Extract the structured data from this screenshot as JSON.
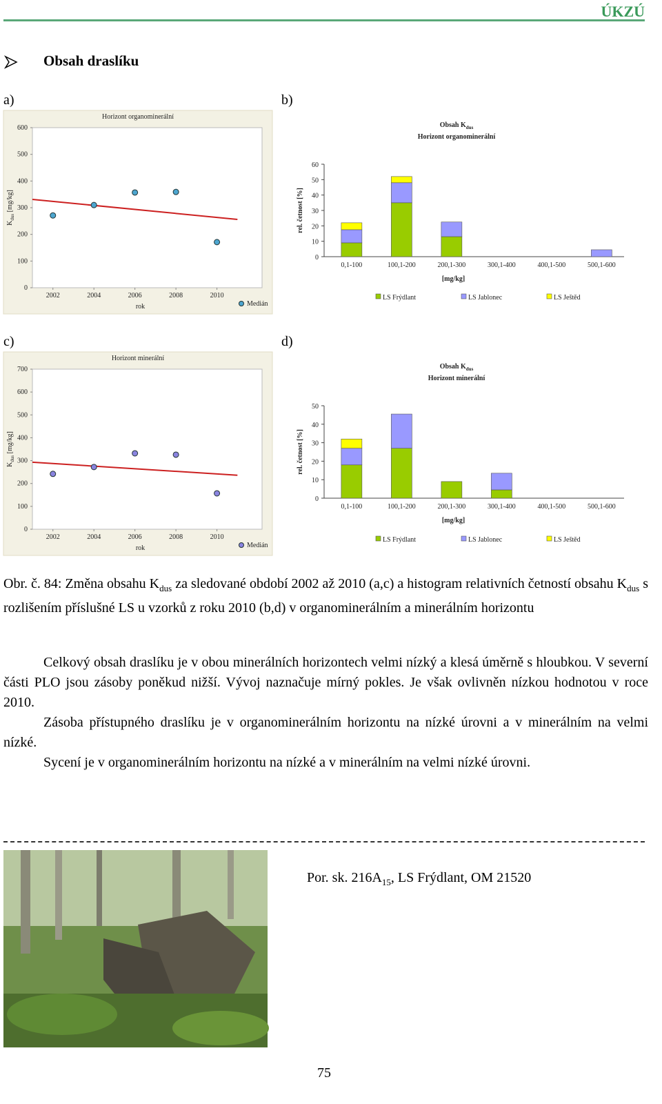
{
  "header": {
    "org": "ÚKZÚ"
  },
  "section_title": "Obsah draslíku",
  "panel_labels": [
    "a)",
    "b)",
    "c)",
    "d)"
  ],
  "chart_data": [
    {
      "type": "scatter",
      "title": "Horizont organominerální",
      "xlabel": "rok",
      "ylabel": [
        {
          "text": "K"
        },
        {
          "sub": "dus"
        },
        {
          "text": " [mg/kg]"
        }
      ],
      "x": [
        2002,
        2004,
        2006,
        2008,
        2010
      ],
      "series": [
        {
          "name": "Medián",
          "color": "#4da6d0",
          "values": [
            271,
            310,
            357,
            359,
            171
          ]
        }
      ],
      "trend": {
        "color": "#cc2020",
        "x": [
          2001,
          2011
        ],
        "values": [
          331,
          256
        ]
      },
      "xlim": [
        2001,
        2012.2
      ],
      "xticks": [
        2002,
        2004,
        2006,
        2008,
        2010
      ],
      "ylim": [
        0,
        600
      ],
      "yticks": [
        0,
        100,
        200,
        300,
        400,
        500,
        600
      ],
      "legend": "lower right"
    },
    {
      "type": "bar",
      "stacked": true,
      "title": [
        {
          "text": "Obsah K"
        },
        {
          "sub": "dus"
        }
      ],
      "subtitle": "Horizont organominerální",
      "xlabel": "[mg/kg]",
      "ylabel": "rel. četnost [%]",
      "categories": [
        "0,1-100",
        "100,1-200",
        "200,1-300",
        "300,1-400",
        "400,1-500",
        "500,1-600"
      ],
      "series": [
        {
          "name": "LS Frýdlant",
          "color": "#99cc00",
          "values": [
            9,
            35,
            13,
            0,
            0,
            0
          ]
        },
        {
          "name": "LS Jablonec",
          "color": "#9999ff",
          "values": [
            8.5,
            13,
            9.5,
            0,
            0,
            4.5
          ]
        },
        {
          "name": "LS Ještěd",
          "color": "#ffff00",
          "values": [
            4.5,
            4,
            0,
            0,
            0,
            0
          ]
        }
      ],
      "ylim": [
        0,
        60
      ],
      "yticks": [
        0,
        10,
        20,
        30,
        40,
        50,
        60
      ],
      "legend": "bottom"
    },
    {
      "type": "scatter",
      "title": "Horizont minerální",
      "xlabel": "rok",
      "ylabel": [
        {
          "text": "K"
        },
        {
          "sub": "dus"
        },
        {
          "text": " [mg/kg]"
        }
      ],
      "x": [
        2002,
        2004,
        2006,
        2008,
        2010
      ],
      "series": [
        {
          "name": "Medián",
          "color": "#8a84e0",
          "values": [
            242,
            272,
            332,
            326,
            157
          ]
        }
      ],
      "trend": {
        "color": "#cc2020",
        "x": [
          2001,
          2011
        ],
        "values": [
          293,
          236
        ]
      },
      "xlim": [
        2001,
        2012.2
      ],
      "xticks": [
        2002,
        2004,
        2006,
        2008,
        2010
      ],
      "ylim": [
        0,
        700
      ],
      "yticks": [
        0,
        100,
        200,
        300,
        400,
        500,
        600,
        700
      ],
      "legend": "lower right"
    },
    {
      "type": "bar",
      "stacked": true,
      "title": [
        {
          "text": "Obsah K"
        },
        {
          "sub": "dus"
        }
      ],
      "subtitle": "Horizont minerální",
      "xlabel": "[mg/kg]",
      "ylabel": "rel. četnost [%]",
      "categories": [
        "0,1-100",
        "100,1-200",
        "200,1-300",
        "300,1-400",
        "400,1-500",
        "500,1-600"
      ],
      "series": [
        {
          "name": "LS Frýdlant",
          "color": "#99cc00",
          "values": [
            18,
            27,
            9,
            4.5,
            0,
            0
          ]
        },
        {
          "name": "LS Jablonec",
          "color": "#9999ff",
          "values": [
            9,
            18.5,
            0,
            9,
            0,
            0
          ]
        },
        {
          "name": "LS Ještěd",
          "color": "#ffff00",
          "values": [
            5,
            0,
            0,
            0,
            0,
            0
          ]
        }
      ],
      "ylim": [
        0,
        50
      ],
      "yticks": [
        0,
        10,
        20,
        30,
        40,
        50
      ],
      "legend": "bottom"
    }
  ],
  "caption": [
    {
      "text": "Obr. č. 84: Změna obsahu K"
    },
    {
      "sub": "dus"
    },
    {
      "text": " za sledované období 2002 až 2010 (a,c) a histogram relativních četností obsahu K"
    },
    {
      "sub": "dus"
    },
    {
      "text": " s rozlišením příslušné LS u vzorků z roku 2010 (b,d) v organominerálním a minerálním horizontu"
    }
  ],
  "paragraphs": [
    "Celkový obsah draslíku je v obou minerálních horizontech velmi nízký a klesá úměrně s hloubkou. V severní části PLO jsou zásoby poněkud nižší. Vývoj naznačuje mírný pokles. Je však ovlivněn nízkou hodnotou v roce 2010.",
    "Zásoba přístupného draslíku je v organominerálním horizontu na nízké úrovni a v minerálním na velmi nízké.",
    "Sycení je v organominerálním horizontu na nízké a v minerálním na velmi nízké úrovni."
  ],
  "photo_caption": [
    {
      "text": "Por. sk. 216A"
    },
    {
      "sub": "15"
    },
    {
      "text": ", LS Frýdlant, OM 21520"
    }
  ],
  "page_number": "75"
}
